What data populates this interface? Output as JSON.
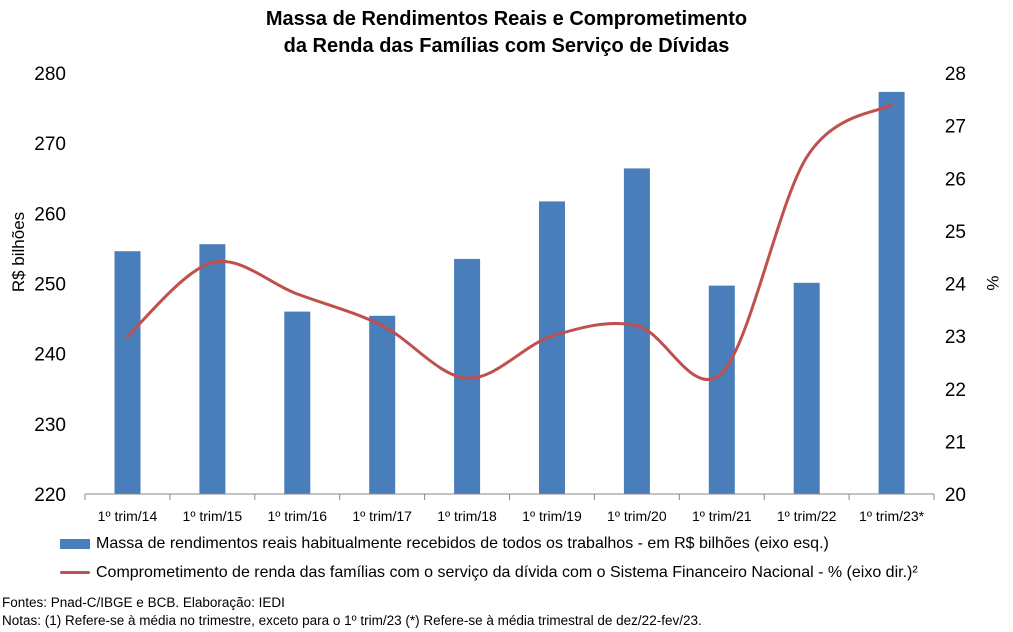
{
  "title_line1": "Massa de Rendimentos Reais e Comprometimento",
  "title_line2": "da Renda das Famílias com Serviço de Dívidas",
  "chart_data": {
    "type": "bar",
    "categories": [
      "1º trim/14",
      "1º trim/15",
      "1º trim/16",
      "1º trim/17",
      "1º trim/18",
      "1º trim/19",
      "1º trim/20",
      "1º trim/21",
      "1º trim/22",
      "1º trim/23*"
    ],
    "series": [
      {
        "name": "Massa de rendimentos reais habitualmente recebidos de todos os trabalhos - em R$ bilhões (eixo esq.)",
        "type": "bar",
        "axis": "left",
        "color": "#4a7ebb",
        "values": [
          254.6,
          255.6,
          246.0,
          245.4,
          253.5,
          261.7,
          266.4,
          249.7,
          250.1,
          277.3
        ]
      },
      {
        "name": "Comprometimento de renda das famílias com o serviço da dívida com o Sistema Financeiro Nacional - % (eixo dir.)²",
        "type": "line",
        "axis": "right",
        "color": "#c0504d",
        "values": [
          23.0,
          24.4,
          23.8,
          23.2,
          22.2,
          23.0,
          23.2,
          22.3,
          26.4,
          27.4
        ]
      }
    ],
    "y_left": {
      "label": "R$ bilhões",
      "lim": [
        220,
        280
      ],
      "ticks": [
        "220",
        "230",
        "240",
        "250",
        "260",
        "270",
        "280"
      ]
    },
    "y_right": {
      "label": "%",
      "lim": [
        20,
        28
      ],
      "ticks": [
        "20",
        "21",
        "22",
        "23",
        "24",
        "25",
        "26",
        "27",
        "28"
      ]
    },
    "grid": false,
    "legend_position": "bottom"
  },
  "legend": {
    "bar_label": "Massa de rendimentos reais habitualmente recebidos de todos os trabalhos - em R$ bilhões (eixo esq.)",
    "line_label": "Comprometimento de renda das famílias com o serviço da dívida com o Sistema Financeiro Nacional - % (eixo dir.)²"
  },
  "footer": {
    "sources": "Fontes: Pnad-C/IBGE e BCB. Elaboração: IEDI",
    "notes": "Notas: (1) Refere-se à média no trimestre, exceto para o 1º trim/23 (*) Refere-se à média trimestral de dez/22-fev/23."
  }
}
